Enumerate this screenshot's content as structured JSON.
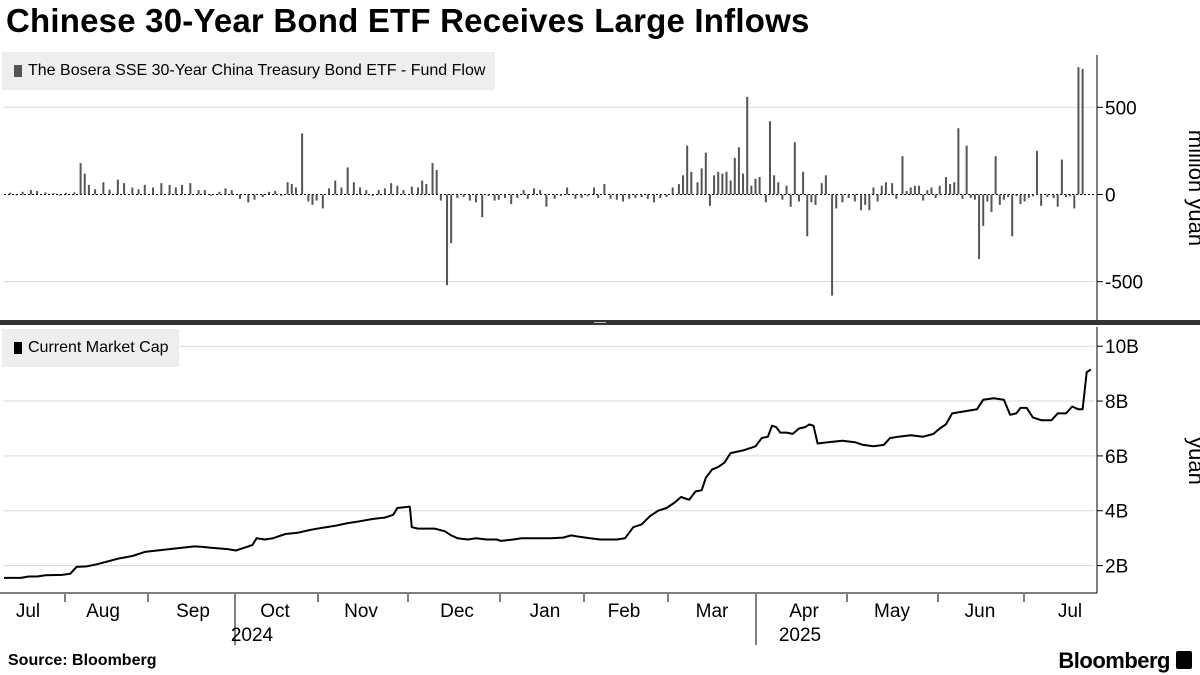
{
  "title": "Chinese 30-Year Bond ETF Receives Large Inflows",
  "source": "Source: Bloomberg",
  "brand": "Bloomberg",
  "colors": {
    "flow_bar": "#555555",
    "line": "#000000",
    "grid": "#d9d9d9",
    "legend_bg": "#eeeeee"
  },
  "x_axis": {
    "months": [
      "Jul",
      "Aug",
      "Sep",
      "Oct",
      "Nov",
      "Dec",
      "Jan",
      "Feb",
      "Mar",
      "Apr",
      "May",
      "Jun",
      "Jul"
    ],
    "years": [
      "2024",
      "2025"
    ]
  },
  "chart_data": [
    {
      "type": "bar",
      "legend": "The Bosera SSE 30-Year China Treasury Bond ETF - Fund Flow",
      "ylabel": "million yuan",
      "ylim": [
        -720,
        800
      ],
      "yticks": [
        -500,
        0,
        500
      ],
      "ytick_labels": [
        "-500",
        "0",
        "500"
      ],
      "grid": true,
      "x_note": "values are trading days from 2024-07-01",
      "points": [
        [
          3,
          10
        ],
        [
          6,
          -5
        ],
        [
          9,
          15
        ],
        [
          13,
          25
        ],
        [
          16,
          20
        ],
        [
          20,
          12
        ],
        [
          24,
          8
        ],
        [
          27,
          -6
        ],
        [
          30,
          10
        ],
        [
          34,
          12
        ],
        [
          37,
          180
        ],
        [
          39,
          120
        ],
        [
          41,
          55
        ],
        [
          44,
          30
        ],
        [
          48,
          70
        ],
        [
          51,
          28
        ],
        [
          55,
          85
        ],
        [
          58,
          65
        ],
        [
          62,
          40
        ],
        [
          65,
          30
        ],
        [
          68,
          55
        ],
        [
          72,
          40
        ],
        [
          76,
          65
        ],
        [
          80,
          55
        ],
        [
          83,
          40
        ],
        [
          86,
          55
        ],
        [
          90,
          65
        ],
        [
          94,
          25
        ],
        [
          97,
          25
        ],
        [
          100,
          -8
        ],
        [
          104,
          15
        ],
        [
          107,
          35
        ],
        [
          110,
          25
        ],
        [
          114,
          -25
        ],
        [
          118,
          -45
        ],
        [
          121,
          -30
        ],
        [
          125,
          -15
        ],
        [
          128,
          15
        ],
        [
          131,
          20
        ],
        [
          134,
          -8
        ],
        [
          137,
          70
        ],
        [
          139,
          60
        ],
        [
          141,
          40
        ],
        [
          144,
          350
        ],
        [
          147,
          -40
        ],
        [
          149,
          -60
        ],
        [
          151,
          -35
        ],
        [
          154,
          -80
        ],
        [
          157,
          35
        ],
        [
          160,
          80
        ],
        [
          163,
          40
        ],
        [
          166,
          155
        ],
        [
          169,
          70
        ],
        [
          172,
          40
        ],
        [
          175,
          25
        ],
        [
          178,
          -8
        ],
        [
          181,
          25
        ],
        [
          184,
          35
        ],
        [
          187,
          65
        ],
        [
          190,
          50
        ],
        [
          193,
          25
        ],
        [
          197,
          45
        ],
        [
          200,
          40
        ],
        [
          202,
          80
        ],
        [
          204,
          60
        ],
        [
          207,
          180
        ],
        [
          209,
          140
        ],
        [
          211,
          -35
        ],
        [
          214,
          -520
        ],
        [
          216,
          -280
        ],
        [
          219,
          -20
        ],
        [
          222,
          -15
        ],
        [
          225,
          -35
        ],
        [
          228,
          -45
        ],
        [
          231,
          -130
        ],
        [
          234,
          -8
        ],
        [
          237,
          -35
        ],
        [
          239,
          -30
        ],
        [
          242,
          -20
        ],
        [
          245,
          -55
        ],
        [
          248,
          -20
        ],
        [
          251,
          25
        ],
        [
          253,
          -25
        ],
        [
          256,
          35
        ],
        [
          259,
          25
        ],
        [
          262,
          -70
        ],
        [
          266,
          -25
        ],
        [
          269,
          -8
        ],
        [
          272,
          40
        ],
        [
          276,
          -25
        ],
        [
          279,
          -20
        ],
        [
          282,
          -10
        ],
        [
          285,
          40
        ],
        [
          287,
          -20
        ],
        [
          290,
          60
        ],
        [
          293,
          -25
        ],
        [
          296,
          -30
        ],
        [
          299,
          -40
        ],
        [
          302,
          -25
        ],
        [
          305,
          -20
        ],
        [
          308,
          -15
        ],
        [
          311,
          -25
        ],
        [
          314,
          -45
        ],
        [
          317,
          -20
        ],
        [
          320,
          -15
        ],
        [
          323,
          40
        ],
        [
          326,
          60
        ],
        [
          328,
          110
        ],
        [
          330,
          280
        ],
        [
          332,
          130
        ],
        [
          335,
          70
        ],
        [
          337,
          150
        ],
        [
          339,
          240
        ],
        [
          341,
          -65
        ],
        [
          343,
          110
        ],
        [
          345,
          130
        ],
        [
          347,
          120
        ],
        [
          349,
          130
        ],
        [
          351,
          80
        ],
        [
          353,
          210
        ],
        [
          355,
          270
        ],
        [
          357,
          120
        ],
        [
          359,
          560
        ],
        [
          361,
          50
        ],
        [
          363,
          90
        ],
        [
          365,
          100
        ],
        [
          368,
          -45
        ],
        [
          370,
          420
        ],
        [
          372,
          110
        ],
        [
          374,
          70
        ],
        [
          376,
          -30
        ],
        [
          378,
          50
        ],
        [
          380,
          -70
        ],
        [
          382,
          300
        ],
        [
          384,
          -40
        ],
        [
          386,
          130
        ],
        [
          388,
          -240
        ],
        [
          390,
          -45
        ],
        [
          392,
          -60
        ],
        [
          395,
          65
        ],
        [
          397,
          110
        ],
        [
          400,
          -580
        ],
        [
          402,
          -80
        ],
        [
          405,
          -45
        ],
        [
          408,
          -20
        ],
        [
          411,
          -40
        ],
        [
          414,
          -90
        ],
        [
          416,
          -60
        ],
        [
          418,
          -90
        ],
        [
          420,
          40
        ],
        [
          422,
          -40
        ],
        [
          424,
          50
        ],
        [
          426,
          70
        ],
        [
          429,
          65
        ],
        [
          431,
          -25
        ],
        [
          434,
          220
        ],
        [
          436,
          20
        ],
        [
          438,
          40
        ],
        [
          440,
          50
        ],
        [
          442,
          50
        ],
        [
          444,
          -35
        ],
        [
          446,
          25
        ],
        [
          448,
          40
        ],
        [
          450,
          -20
        ],
        [
          452,
          50
        ],
        [
          455,
          100
        ],
        [
          457,
          60
        ],
        [
          459,
          70
        ],
        [
          461,
          380
        ],
        [
          463,
          -25
        ],
        [
          465,
          280
        ],
        [
          467,
          -20
        ],
        [
          469,
          -30
        ],
        [
          471,
          -370
        ],
        [
          473,
          -180
        ],
        [
          475,
          -40
        ],
        [
          477,
          -100
        ],
        [
          479,
          220
        ],
        [
          481,
          -60
        ],
        [
          483,
          -30
        ],
        [
          485,
          -15
        ],
        [
          487,
          -240
        ],
        [
          489,
          -10
        ],
        [
          491,
          -55
        ],
        [
          493,
          -40
        ],
        [
          495,
          -20
        ],
        [
          497,
          -10
        ],
        [
          499,
          250
        ],
        [
          501,
          -65
        ],
        [
          504,
          -15
        ],
        [
          507,
          -20
        ],
        [
          509,
          -70
        ],
        [
          511,
          200
        ],
        [
          513,
          -15
        ],
        [
          515,
          -10
        ],
        [
          517,
          -80
        ],
        [
          519,
          730
        ],
        [
          521,
          720
        ]
      ]
    },
    {
      "type": "line",
      "legend": "Current Market Cap",
      "ylabel": "yuan",
      "ylim": [
        1.0,
        10.7
      ],
      "yticks": [
        2,
        4,
        6,
        8,
        10
      ],
      "ytick_labels": [
        "2B",
        "4B",
        "6B",
        "8B",
        "10B"
      ],
      "units": "billion yuan",
      "grid": true,
      "x_note": "values are trading days from 2024-07-01",
      "points": [
        [
          0,
          1.55
        ],
        [
          8,
          1.55
        ],
        [
          12,
          1.6
        ],
        [
          16,
          1.6
        ],
        [
          20,
          1.65
        ],
        [
          28,
          1.66
        ],
        [
          32,
          1.7
        ],
        [
          35,
          1.95
        ],
        [
          40,
          1.97
        ],
        [
          45,
          2.05
        ],
        [
          50,
          2.15
        ],
        [
          55,
          2.25
        ],
        [
          62,
          2.35
        ],
        [
          68,
          2.5
        ],
        [
          74,
          2.55
        ],
        [
          80,
          2.6
        ],
        [
          86,
          2.65
        ],
        [
          92,
          2.7
        ],
        [
          96,
          2.68
        ],
        [
          100,
          2.65
        ],
        [
          108,
          2.6
        ],
        [
          112,
          2.55
        ],
        [
          116,
          2.65
        ],
        [
          120,
          2.75
        ],
        [
          122,
          3.0
        ],
        [
          126,
          2.95
        ],
        [
          130,
          3.0
        ],
        [
          136,
          3.15
        ],
        [
          142,
          3.2
        ],
        [
          148,
          3.3
        ],
        [
          154,
          3.38
        ],
        [
          160,
          3.45
        ],
        [
          166,
          3.55
        ],
        [
          172,
          3.62
        ],
        [
          178,
          3.7
        ],
        [
          184,
          3.75
        ],
        [
          188,
          3.85
        ],
        [
          190,
          4.1
        ],
        [
          196,
          4.15
        ],
        [
          197,
          3.4
        ],
        [
          200,
          3.35
        ],
        [
          208,
          3.35
        ],
        [
          213,
          3.25
        ],
        [
          216,
          3.1
        ],
        [
          219,
          3.0
        ],
        [
          224,
          2.95
        ],
        [
          228,
          3.0
        ],
        [
          233,
          2.95
        ],
        [
          238,
          2.95
        ],
        [
          240,
          2.9
        ],
        [
          246,
          2.95
        ],
        [
          250,
          3.0
        ],
        [
          258,
          3.0
        ],
        [
          264,
          3.0
        ],
        [
          270,
          3.02
        ],
        [
          274,
          3.1
        ],
        [
          278,
          3.05
        ],
        [
          283,
          3.0
        ],
        [
          288,
          2.95
        ],
        [
          296,
          2.95
        ],
        [
          300,
          3.0
        ],
        [
          304,
          3.4
        ],
        [
          308,
          3.5
        ],
        [
          312,
          3.8
        ],
        [
          316,
          4.0
        ],
        [
          320,
          4.1
        ],
        [
          324,
          4.3
        ],
        [
          327,
          4.5
        ],
        [
          331,
          4.4
        ],
        [
          334,
          4.7
        ],
        [
          337,
          4.75
        ],
        [
          339,
          5.2
        ],
        [
          342,
          5.5
        ],
        [
          345,
          5.6
        ],
        [
          348,
          5.75
        ],
        [
          351,
          6.1
        ],
        [
          357,
          6.2
        ],
        [
          363,
          6.35
        ],
        [
          366,
          6.65
        ],
        [
          369,
          6.7
        ],
        [
          371,
          7.1
        ],
        [
          373,
          7.05
        ],
        [
          375,
          6.85
        ],
        [
          378,
          6.85
        ],
        [
          381,
          6.8
        ],
        [
          384,
          7.0
        ],
        [
          387,
          7.05
        ],
        [
          389,
          7.15
        ],
        [
          391,
          7.1
        ],
        [
          393,
          6.45
        ],
        [
          398,
          6.5
        ],
        [
          405,
          6.55
        ],
        [
          411,
          6.5
        ],
        [
          415,
          6.4
        ],
        [
          420,
          6.35
        ],
        [
          425,
          6.4
        ],
        [
          428,
          6.65
        ],
        [
          432,
          6.7
        ],
        [
          438,
          6.75
        ],
        [
          444,
          6.7
        ],
        [
          449,
          6.8
        ],
        [
          452,
          7.0
        ],
        [
          455,
          7.15
        ],
        [
          458,
          7.55
        ],
        [
          462,
          7.6
        ],
        [
          466,
          7.65
        ],
        [
          470,
          7.7
        ],
        [
          473,
          8.05
        ],
        [
          478,
          8.1
        ],
        [
          483,
          8.05
        ],
        [
          486,
          7.5
        ],
        [
          489,
          7.55
        ],
        [
          491,
          7.75
        ],
        [
          494,
          7.75
        ],
        [
          497,
          7.4
        ],
        [
          501,
          7.3
        ],
        [
          506,
          7.3
        ],
        [
          509,
          7.55
        ],
        [
          513,
          7.55
        ],
        [
          516,
          7.8
        ],
        [
          519,
          7.7
        ],
        [
          521,
          7.7
        ],
        [
          523,
          9.05
        ],
        [
          525,
          9.15
        ]
      ]
    }
  ]
}
